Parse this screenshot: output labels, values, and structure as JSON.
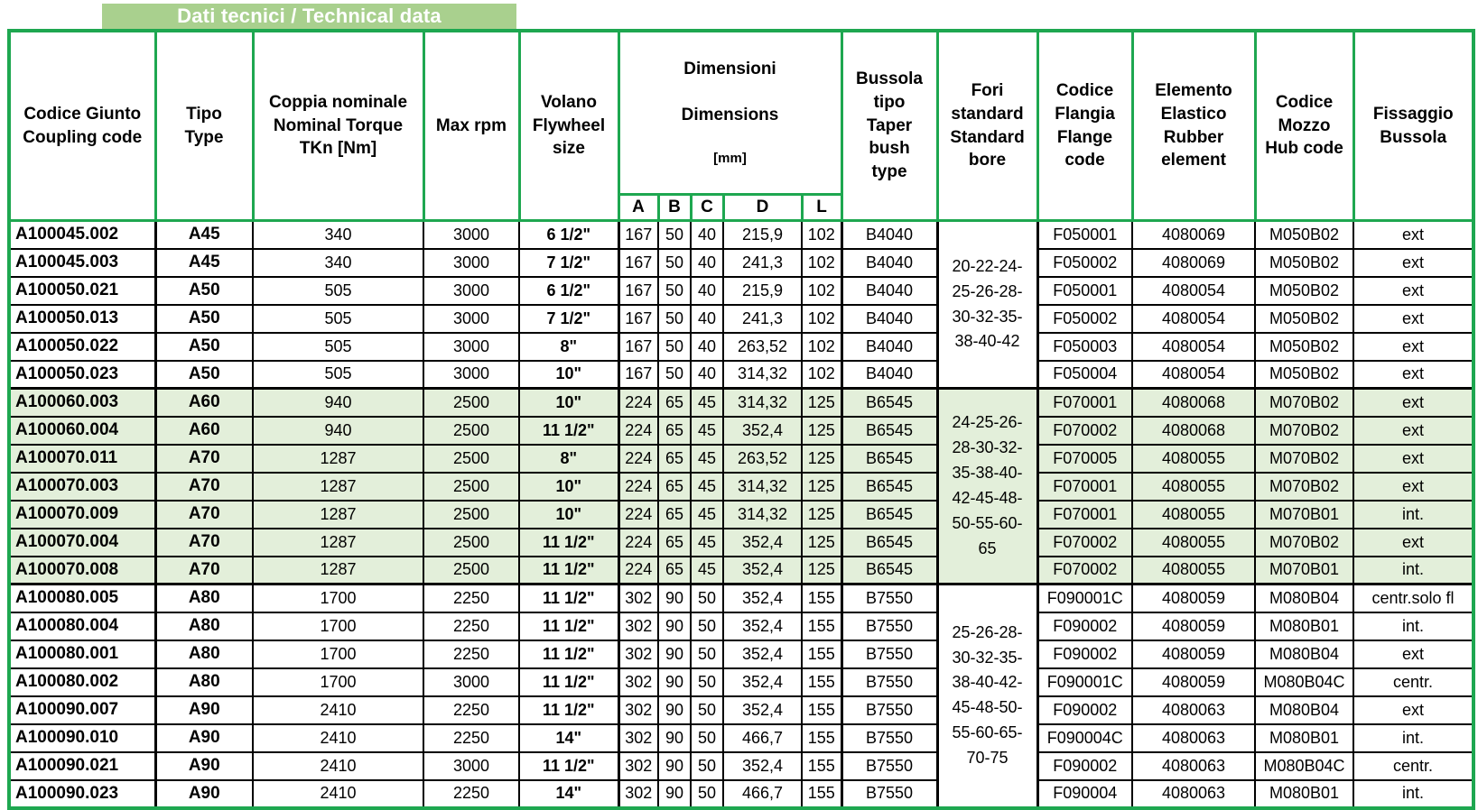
{
  "title": "Dati tecnici / Technical data",
  "colors": {
    "border_green": "#1ea750",
    "title_bar_bg": "#a9d08e",
    "green_row_bg": "#e3efda",
    "cell_border_black": "#000000"
  },
  "header": {
    "coupling_code": "Codice Giunto\nCoupling code",
    "type": "Tipo\nType",
    "torque": "Coppia nominale\nNominal Torque\nTKn [Nm]",
    "max_rpm": "Max rpm",
    "flywheel": "Volano\nFlywheel\nsize",
    "dimensions": {
      "it": "Dimensioni",
      "en": "Dimensions",
      "unit": "[mm]"
    },
    "dim_cols": [
      "A",
      "B",
      "C",
      "D",
      "L"
    ],
    "bush": "Bussola\ntipo\nTaper bush\ntype",
    "bore": "Fori\nstandard\nStandard\nbore",
    "flange": "Codice\nFlangia\nFlange\ncode",
    "rubber": "Elemento\nElastico\nRubber\nelement",
    "hub": "Codice\nMozzo\nHub code",
    "fixing": "Fissaggio\nBussola"
  },
  "groups": [
    {
      "shade": "white",
      "bore": "20-22-24-\n25-26-28-\n30-32-35-\n38-40-42",
      "rows": [
        [
          "A100045.002",
          "A45",
          "340",
          "3000",
          "6  1/2\"",
          "167",
          "50",
          "40",
          "215,9",
          "102",
          "B4040",
          "F050001",
          "4080069",
          "M050B02",
          "ext"
        ],
        [
          "A100045.003",
          "A45",
          "340",
          "3000",
          "7  1/2\"",
          "167",
          "50",
          "40",
          "241,3",
          "102",
          "B4040",
          "F050002",
          "4080069",
          "M050B02",
          "ext"
        ],
        [
          "A100050.021",
          "A50",
          "505",
          "3000",
          "6  1/2\"",
          "167",
          "50",
          "40",
          "215,9",
          "102",
          "B4040",
          "F050001",
          "4080054",
          "M050B02",
          "ext"
        ],
        [
          "A100050.013",
          "A50",
          "505",
          "3000",
          "7  1/2\"",
          "167",
          "50",
          "40",
          "241,3",
          "102",
          "B4040",
          "F050002",
          "4080054",
          "M050B02",
          "ext"
        ],
        [
          "A100050.022",
          "A50",
          "505",
          "3000",
          "8\"",
          "167",
          "50",
          "40",
          "263,52",
          "102",
          "B4040",
          "F050003",
          "4080054",
          "M050B02",
          "ext"
        ],
        [
          "A100050.023",
          "A50",
          "505",
          "3000",
          "10\"",
          "167",
          "50",
          "40",
          "314,32",
          "102",
          "B4040",
          "F050004",
          "4080054",
          "M050B02",
          "ext"
        ]
      ]
    },
    {
      "shade": "green",
      "bore": "24-25-26-\n28-30-32-\n35-38-40-\n42-45-48-\n50-55-60-\n65",
      "rows": [
        [
          "A100060.003",
          "A60",
          "940",
          "2500",
          "10\"",
          "224",
          "65",
          "45",
          "314,32",
          "125",
          "B6545",
          "F070001",
          "4080068",
          "M070B02",
          "ext"
        ],
        [
          "A100060.004",
          "A60",
          "940",
          "2500",
          "11 1/2\"",
          "224",
          "65",
          "45",
          "352,4",
          "125",
          "B6545",
          "F070002",
          "4080068",
          "M070B02",
          "ext"
        ],
        [
          "A100070.011",
          "A70",
          "1287",
          "2500",
          "8\"",
          "224",
          "65",
          "45",
          "263,52",
          "125",
          "B6545",
          "F070005",
          "4080055",
          "M070B02",
          "ext"
        ],
        [
          "A100070.003",
          "A70",
          "1287",
          "2500",
          "10\"",
          "224",
          "65",
          "45",
          "314,32",
          "125",
          "B6545",
          "F070001",
          "4080055",
          "M070B02",
          "ext"
        ],
        [
          "A100070.009",
          "A70",
          "1287",
          "2500",
          "10\"",
          "224",
          "65",
          "45",
          "314,32",
          "125",
          "B6545",
          "F070001",
          "4080055",
          "M070B01",
          "int."
        ],
        [
          "A100070.004",
          "A70",
          "1287",
          "2500",
          "11 1/2\"",
          "224",
          "65",
          "45",
          "352,4",
          "125",
          "B6545",
          "F070002",
          "4080055",
          "M070B02",
          "ext"
        ],
        [
          "A100070.008",
          "A70",
          "1287",
          "2500",
          "11 1/2\"",
          "224",
          "65",
          "45",
          "352,4",
          "125",
          "B6545",
          "F070002",
          "4080055",
          "M070B01",
          "int."
        ]
      ]
    },
    {
      "shade": "white",
      "bore": "25-26-28-\n30-32-35-\n38-40-42-\n45-48-50-\n55-60-65-\n70-75",
      "rows": [
        [
          "A100080.005",
          "A80",
          "1700",
          "2250",
          "11 1/2\"",
          "302",
          "90",
          "50",
          "352,4",
          "155",
          "B7550",
          "F090001C",
          "4080059",
          "M080B04",
          "centr.solo fl"
        ],
        [
          "A100080.004",
          "A80",
          "1700",
          "2250",
          "11 1/2\"",
          "302",
          "90",
          "50",
          "352,4",
          "155",
          "B7550",
          "F090002",
          "4080059",
          "M080B01",
          "int."
        ],
        [
          "A100080.001",
          "A80",
          "1700",
          "2250",
          "11 1/2\"",
          "302",
          "90",
          "50",
          "352,4",
          "155",
          "B7550",
          "F090002",
          "4080059",
          "M080B04",
          "ext"
        ],
        [
          "A100080.002",
          "A80",
          "1700",
          "3000",
          "11 1/2\"",
          "302",
          "90",
          "50",
          "352,4",
          "155",
          "B7550",
          "F090001C",
          "4080059",
          "M080B04C",
          "centr."
        ],
        [
          "A100090.007",
          "A90",
          "2410",
          "2250",
          "11 1/2\"",
          "302",
          "90",
          "50",
          "352,4",
          "155",
          "B7550",
          "F090002",
          "4080063",
          "M080B04",
          "ext"
        ],
        [
          "A100090.010",
          "A90",
          "2410",
          "2250",
          "14\"",
          "302",
          "90",
          "50",
          "466,7",
          "155",
          "B7550",
          "F090004C",
          "4080063",
          "M080B01",
          "int."
        ],
        [
          "A100090.021",
          "A90",
          "2410",
          "3000",
          "11 1/2\"",
          "302",
          "90",
          "50",
          "352,4",
          "155",
          "B7550",
          "F090002",
          "4080063",
          "M080B04C",
          "centr."
        ],
        [
          "A100090.023",
          "A90",
          "2410",
          "2250",
          "14\"",
          "302",
          "90",
          "50",
          "466,7",
          "155",
          "B7550",
          "F090004",
          "4080063",
          "M080B01",
          "int."
        ]
      ]
    }
  ]
}
